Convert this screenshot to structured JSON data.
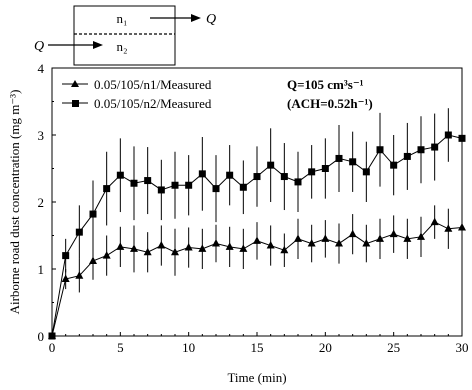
{
  "chart_data": {
    "type": "line",
    "xlabel": "Time (min)",
    "ylabel": "Airborne road dust concentration (mg m⁻³)",
    "xlim": [
      0,
      30
    ],
    "ylim": [
      0,
      4
    ],
    "xticks": [
      "0",
      "5",
      "10",
      "15",
      "20",
      "25",
      "30"
    ],
    "yticks": [
      "0",
      "1",
      "2",
      "3",
      "4"
    ],
    "grid": false,
    "legend_position": "top-left",
    "annotation": {
      "flow": "Q=105 cm³s⁻¹",
      "ach": "(ACH=0.52h⁻¹)"
    },
    "schematic": {
      "upper_zone": "n₁",
      "lower_zone": "n₂",
      "outflow": "Q",
      "inflow": "Q"
    },
    "x": [
      0,
      1,
      2,
      3,
      4,
      5,
      6,
      7,
      8,
      9,
      10,
      11,
      12,
      13,
      14,
      15,
      16,
      17,
      18,
      19,
      20,
      21,
      22,
      23,
      24,
      25,
      26,
      27,
      28,
      29,
      30
    ],
    "series": [
      {
        "name": "0.05/105/n1/Measured",
        "marker": "triangle",
        "values": [
          0,
          0.85,
          0.9,
          1.12,
          1.2,
          1.33,
          1.3,
          1.25,
          1.35,
          1.25,
          1.32,
          1.3,
          1.38,
          1.33,
          1.3,
          1.42,
          1.35,
          1.28,
          1.45,
          1.38,
          1.45,
          1.38,
          1.52,
          1.38,
          1.45,
          1.52,
          1.45,
          1.48,
          1.7,
          1.6,
          1.62
        ],
        "errors": [
          0,
          0.15,
          0.25,
          0.28,
          0.3,
          0.3,
          0.35,
          0.3,
          0.3,
          0.35,
          0.3,
          0.3,
          0.28,
          0.3,
          0.3,
          0.28,
          0.3,
          0.25,
          0.3,
          0.28,
          0.28,
          0.3,
          0.3,
          0.28,
          0.3,
          0.28,
          0.3,
          0.3,
          0.25,
          0.3,
          0.3
        ]
      },
      {
        "name": "0.05/105/n2/Measured",
        "marker": "square",
        "values": [
          0,
          1.2,
          1.55,
          1.82,
          2.2,
          2.4,
          2.28,
          2.32,
          2.18,
          2.25,
          2.25,
          2.42,
          2.2,
          2.4,
          2.22,
          2.38,
          2.55,
          2.38,
          2.3,
          2.45,
          2.5,
          2.65,
          2.6,
          2.45,
          2.78,
          2.55,
          2.68,
          2.78,
          2.82,
          3.0,
          2.95
        ],
        "errors": [
          0,
          0.25,
          0.4,
          0.5,
          0.55,
          0.55,
          0.55,
          0.5,
          0.45,
          0.5,
          0.45,
          0.55,
          0.5,
          0.45,
          0.4,
          0.45,
          0.55,
          0.5,
          0.45,
          0.4,
          0.45,
          0.5,
          0.45,
          0.45,
          0.55,
          0.45,
          0.5,
          0.5,
          0.5,
          0.4,
          0.45
        ]
      }
    ]
  }
}
